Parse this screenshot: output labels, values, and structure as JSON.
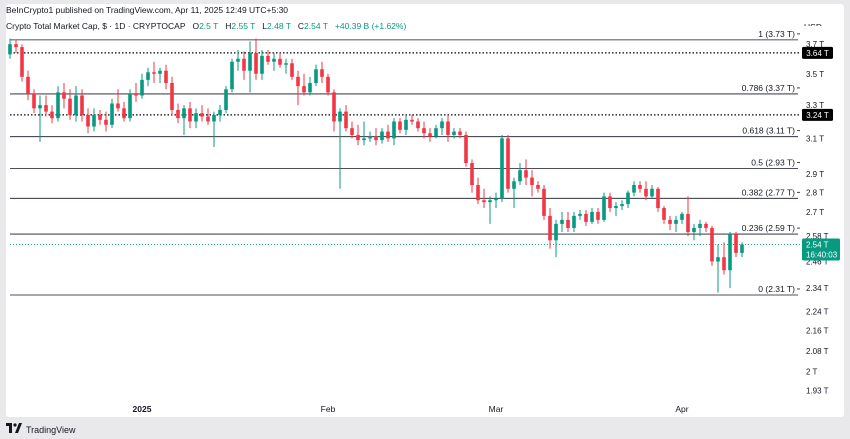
{
  "header": {
    "publish_line": "BeInCrypto1 published on TradingView.com, Apr 11, 2025 12:49 UTC+5:30",
    "symbol": "Crypto Total Market Cap, $ · 1D · CRYPTOCAP",
    "o_label": "O",
    "o_value": "2.5 T",
    "h_label": "H",
    "h_value": "2.55 T",
    "l_label": "L",
    "l_value": "2.48 T",
    "c_label": "C",
    "c_value": "2.54 T",
    "change": "+40.39 B (+1.62%)",
    "currency": "USD"
  },
  "footer": {
    "brand": "TradingView",
    "logo_icon": "tradingview-logo-icon"
  },
  "colors": {
    "up": "#089981",
    "down": "#f23645",
    "fib_line": "#131722",
    "price_badge": "#089981",
    "marker_badge": "#000000"
  },
  "chart_data": {
    "type": "candlestick",
    "y_scale": "log",
    "ylim": [
      1.9,
      3.8
    ],
    "y_ticks": [
      "3.7 T",
      "3.5 T",
      "3.3 T",
      "3.1 T",
      "2.9 T",
      "2.8 T",
      "2.7 T",
      "2.58 T",
      "2.46 T",
      "2.34 T",
      "2.24 T",
      "2.16 T",
      "2.08 T",
      "2 T",
      "1.93 T"
    ],
    "y_tick_values": [
      3.7,
      3.5,
      3.3,
      3.1,
      2.9,
      2.8,
      2.7,
      2.58,
      2.46,
      2.34,
      2.24,
      2.16,
      2.08,
      2.0,
      1.93
    ],
    "x_ticks": [
      {
        "label": "2025",
        "date": "2025-01-01"
      },
      {
        "label": "Feb",
        "date": "2025-02-01"
      },
      {
        "label": "Mar",
        "date": "2025-03-01"
      },
      {
        "label": "Apr",
        "date": "2025-04-01"
      }
    ],
    "fib_levels": [
      {
        "label": "1 (3.73 T)",
        "value": 3.73
      },
      {
        "label": "0.786 (3.37 T)",
        "value": 3.37
      },
      {
        "label": "0.618 (3.11 T)",
        "value": 3.11
      },
      {
        "label": "0.5 (2.93 T)",
        "value": 2.93
      },
      {
        "label": "0.382 (2.77 T)",
        "value": 2.77
      },
      {
        "label": "0.236 (2.59 T)",
        "value": 2.59
      },
      {
        "label": "0 (2.31 T)",
        "value": 2.31
      }
    ],
    "dotted_levels": [
      {
        "label": "3.64 T",
        "value": 3.64
      },
      {
        "label": "3.24 T",
        "value": 3.24
      }
    ],
    "current_price": {
      "label": "2.54 T",
      "countdown": "16:40:03",
      "value": 2.54
    },
    "candles": [
      {
        "d": "2024-12-10",
        "o": 3.63,
        "h": 3.74,
        "l": 3.6,
        "c": 3.7
      },
      {
        "d": "2024-12-11",
        "o": 3.7,
        "h": 3.73,
        "l": 3.64,
        "c": 3.68
      },
      {
        "d": "2024-12-12",
        "o": 3.68,
        "h": 3.7,
        "l": 3.45,
        "c": 3.48
      },
      {
        "d": "2024-12-13",
        "o": 3.48,
        "h": 3.52,
        "l": 3.33,
        "c": 3.37
      },
      {
        "d": "2024-12-14",
        "o": 3.37,
        "h": 3.4,
        "l": 3.25,
        "c": 3.28
      },
      {
        "d": "2024-12-15",
        "o": 3.28,
        "h": 3.36,
        "l": 3.08,
        "c": 3.3
      },
      {
        "d": "2024-12-16",
        "o": 3.3,
        "h": 3.36,
        "l": 3.23,
        "c": 3.26
      },
      {
        "d": "2024-12-17",
        "o": 3.26,
        "h": 3.3,
        "l": 3.19,
        "c": 3.22
      },
      {
        "d": "2024-12-18",
        "o": 3.22,
        "h": 3.42,
        "l": 3.2,
        "c": 3.38
      },
      {
        "d": "2024-12-19",
        "o": 3.38,
        "h": 3.44,
        "l": 3.28,
        "c": 3.34
      },
      {
        "d": "2024-12-20",
        "o": 3.34,
        "h": 3.4,
        "l": 3.21,
        "c": 3.24
      },
      {
        "d": "2024-12-21",
        "o": 3.24,
        "h": 3.42,
        "l": 3.2,
        "c": 3.36
      },
      {
        "d": "2024-12-22",
        "o": 3.36,
        "h": 3.4,
        "l": 3.2,
        "c": 3.24
      },
      {
        "d": "2024-12-23",
        "o": 3.24,
        "h": 3.28,
        "l": 3.13,
        "c": 3.17
      },
      {
        "d": "2024-12-24",
        "o": 3.17,
        "h": 3.28,
        "l": 3.14,
        "c": 3.24
      },
      {
        "d": "2024-12-25",
        "o": 3.24,
        "h": 3.27,
        "l": 3.18,
        "c": 3.21
      },
      {
        "d": "2024-12-26",
        "o": 3.21,
        "h": 3.26,
        "l": 3.14,
        "c": 3.18
      },
      {
        "d": "2024-12-27",
        "o": 3.18,
        "h": 3.34,
        "l": 3.16,
        "c": 3.31
      },
      {
        "d": "2024-12-28",
        "o": 3.31,
        "h": 3.4,
        "l": 3.26,
        "c": 3.28
      },
      {
        "d": "2024-12-29",
        "o": 3.28,
        "h": 3.32,
        "l": 3.2,
        "c": 3.22
      },
      {
        "d": "2024-12-30",
        "o": 3.22,
        "h": 3.4,
        "l": 3.2,
        "c": 3.37
      },
      {
        "d": "2024-12-31",
        "o": 3.37,
        "h": 3.44,
        "l": 3.32,
        "c": 3.36
      },
      {
        "d": "2025-01-01",
        "o": 3.36,
        "h": 3.5,
        "l": 3.34,
        "c": 3.46
      },
      {
        "d": "2025-01-02",
        "o": 3.46,
        "h": 3.54,
        "l": 3.42,
        "c": 3.51
      },
      {
        "d": "2025-01-03",
        "o": 3.51,
        "h": 3.58,
        "l": 3.44,
        "c": 3.5
      },
      {
        "d": "2025-01-04",
        "o": 3.5,
        "h": 3.54,
        "l": 3.44,
        "c": 3.52
      },
      {
        "d": "2025-01-05",
        "o": 3.52,
        "h": 3.56,
        "l": 3.4,
        "c": 3.44
      },
      {
        "d": "2025-01-06",
        "o": 3.44,
        "h": 3.48,
        "l": 3.24,
        "c": 3.27
      },
      {
        "d": "2025-01-07",
        "o": 3.27,
        "h": 3.31,
        "l": 3.19,
        "c": 3.22
      },
      {
        "d": "2025-01-08",
        "o": 3.22,
        "h": 3.3,
        "l": 3.12,
        "c": 3.28
      },
      {
        "d": "2025-01-09",
        "o": 3.28,
        "h": 3.32,
        "l": 3.16,
        "c": 3.2
      },
      {
        "d": "2025-01-10",
        "o": 3.2,
        "h": 3.28,
        "l": 3.16,
        "c": 3.25
      },
      {
        "d": "2025-01-11",
        "o": 3.25,
        "h": 3.3,
        "l": 3.2,
        "c": 3.23
      },
      {
        "d": "2025-01-12",
        "o": 3.23,
        "h": 3.28,
        "l": 3.18,
        "c": 3.2
      },
      {
        "d": "2025-01-13",
        "o": 3.2,
        "h": 3.26,
        "l": 3.05,
        "c": 3.24
      },
      {
        "d": "2025-01-14",
        "o": 3.24,
        "h": 3.3,
        "l": 3.2,
        "c": 3.27
      },
      {
        "d": "2025-01-15",
        "o": 3.27,
        "h": 3.42,
        "l": 3.25,
        "c": 3.4
      },
      {
        "d": "2025-01-16",
        "o": 3.4,
        "h": 3.6,
        "l": 3.38,
        "c": 3.58
      },
      {
        "d": "2025-01-17",
        "o": 3.58,
        "h": 3.66,
        "l": 3.52,
        "c": 3.6
      },
      {
        "d": "2025-01-18",
        "o": 3.6,
        "h": 3.65,
        "l": 3.46,
        "c": 3.52
      },
      {
        "d": "2025-01-19",
        "o": 3.52,
        "h": 3.72,
        "l": 3.38,
        "c": 3.64
      },
      {
        "d": "2025-01-20",
        "o": 3.64,
        "h": 3.74,
        "l": 3.46,
        "c": 3.5
      },
      {
        "d": "2025-01-21",
        "o": 3.5,
        "h": 3.66,
        "l": 3.46,
        "c": 3.62
      },
      {
        "d": "2025-01-22",
        "o": 3.62,
        "h": 3.66,
        "l": 3.56,
        "c": 3.58
      },
      {
        "d": "2025-01-23",
        "o": 3.58,
        "h": 3.64,
        "l": 3.52,
        "c": 3.6
      },
      {
        "d": "2025-01-24",
        "o": 3.6,
        "h": 3.64,
        "l": 3.54,
        "c": 3.56
      },
      {
        "d": "2025-01-25",
        "o": 3.56,
        "h": 3.6,
        "l": 3.5,
        "c": 3.57
      },
      {
        "d": "2025-01-26",
        "o": 3.57,
        "h": 3.6,
        "l": 3.46,
        "c": 3.48
      },
      {
        "d": "2025-01-27",
        "o": 3.48,
        "h": 3.52,
        "l": 3.3,
        "c": 3.42
      },
      {
        "d": "2025-01-28",
        "o": 3.42,
        "h": 3.5,
        "l": 3.36,
        "c": 3.38
      },
      {
        "d": "2025-01-29",
        "o": 3.38,
        "h": 3.48,
        "l": 3.36,
        "c": 3.44
      },
      {
        "d": "2025-01-30",
        "o": 3.44,
        "h": 3.56,
        "l": 3.42,
        "c": 3.53
      },
      {
        "d": "2025-01-31",
        "o": 3.53,
        "h": 3.58,
        "l": 3.44,
        "c": 3.48
      },
      {
        "d": "2025-02-01",
        "o": 3.48,
        "h": 3.5,
        "l": 3.36,
        "c": 3.38
      },
      {
        "d": "2025-02-02",
        "o": 3.38,
        "h": 3.4,
        "l": 3.14,
        "c": 3.2
      },
      {
        "d": "2025-02-03",
        "o": 3.2,
        "h": 3.28,
        "l": 2.82,
        "c": 3.26
      },
      {
        "d": "2025-02-04",
        "o": 3.26,
        "h": 3.3,
        "l": 3.14,
        "c": 3.16
      },
      {
        "d": "2025-02-05",
        "o": 3.16,
        "h": 3.2,
        "l": 3.1,
        "c": 3.12
      },
      {
        "d": "2025-02-06",
        "o": 3.12,
        "h": 3.18,
        "l": 3.06,
        "c": 3.09
      },
      {
        "d": "2025-02-07",
        "o": 3.09,
        "h": 3.2,
        "l": 3.06,
        "c": 3.1
      },
      {
        "d": "2025-02-08",
        "o": 3.1,
        "h": 3.14,
        "l": 3.08,
        "c": 3.11
      },
      {
        "d": "2025-02-09",
        "o": 3.11,
        "h": 3.16,
        "l": 3.06,
        "c": 3.09
      },
      {
        "d": "2025-02-10",
        "o": 3.09,
        "h": 3.16,
        "l": 3.07,
        "c": 3.14
      },
      {
        "d": "2025-02-11",
        "o": 3.14,
        "h": 3.18,
        "l": 3.08,
        "c": 3.1
      },
      {
        "d": "2025-02-12",
        "o": 3.1,
        "h": 3.22,
        "l": 3.06,
        "c": 3.2
      },
      {
        "d": "2025-02-13",
        "o": 3.2,
        "h": 3.22,
        "l": 3.13,
        "c": 3.15
      },
      {
        "d": "2025-02-14",
        "o": 3.15,
        "h": 3.24,
        "l": 3.12,
        "c": 3.21
      },
      {
        "d": "2025-02-15",
        "o": 3.21,
        "h": 3.24,
        "l": 3.18,
        "c": 3.2
      },
      {
        "d": "2025-02-16",
        "o": 3.2,
        "h": 3.22,
        "l": 3.14,
        "c": 3.16
      },
      {
        "d": "2025-02-17",
        "o": 3.16,
        "h": 3.2,
        "l": 3.1,
        "c": 3.13
      },
      {
        "d": "2025-02-18",
        "o": 3.13,
        "h": 3.16,
        "l": 3.08,
        "c": 3.11
      },
      {
        "d": "2025-02-19",
        "o": 3.11,
        "h": 3.18,
        "l": 3.1,
        "c": 3.16
      },
      {
        "d": "2025-02-20",
        "o": 3.16,
        "h": 3.22,
        "l": 3.12,
        "c": 3.2
      },
      {
        "d": "2025-02-21",
        "o": 3.2,
        "h": 3.24,
        "l": 3.08,
        "c": 3.12
      },
      {
        "d": "2025-02-22",
        "o": 3.12,
        "h": 3.16,
        "l": 3.1,
        "c": 3.14
      },
      {
        "d": "2025-02-23",
        "o": 3.14,
        "h": 3.16,
        "l": 3.1,
        "c": 3.12
      },
      {
        "d": "2025-02-24",
        "o": 3.12,
        "h": 3.14,
        "l": 2.94,
        "c": 2.96
      },
      {
        "d": "2025-02-25",
        "o": 2.96,
        "h": 2.98,
        "l": 2.8,
        "c": 2.84
      },
      {
        "d": "2025-02-26",
        "o": 2.84,
        "h": 2.88,
        "l": 2.74,
        "c": 2.76
      },
      {
        "d": "2025-02-27",
        "o": 2.76,
        "h": 2.82,
        "l": 2.72,
        "c": 2.75
      },
      {
        "d": "2025-02-28",
        "o": 2.75,
        "h": 2.78,
        "l": 2.64,
        "c": 2.76
      },
      {
        "d": "2025-03-01",
        "o": 2.76,
        "h": 2.8,
        "l": 2.72,
        "c": 2.77
      },
      {
        "d": "2025-03-02",
        "o": 2.77,
        "h": 3.12,
        "l": 2.75,
        "c": 3.1
      },
      {
        "d": "2025-03-03",
        "o": 3.1,
        "h": 3.12,
        "l": 2.8,
        "c": 2.82
      },
      {
        "d": "2025-03-04",
        "o": 2.82,
        "h": 2.88,
        "l": 2.72,
        "c": 2.86
      },
      {
        "d": "2025-03-05",
        "o": 2.86,
        "h": 2.96,
        "l": 2.84,
        "c": 2.92
      },
      {
        "d": "2025-03-06",
        "o": 2.92,
        "h": 2.98,
        "l": 2.84,
        "c": 2.88
      },
      {
        "d": "2025-03-07",
        "o": 2.88,
        "h": 2.92,
        "l": 2.78,
        "c": 2.84
      },
      {
        "d": "2025-03-08",
        "o": 2.84,
        "h": 2.86,
        "l": 2.8,
        "c": 2.82
      },
      {
        "d": "2025-03-09",
        "o": 2.82,
        "h": 2.84,
        "l": 2.66,
        "c": 2.68
      },
      {
        "d": "2025-03-10",
        "o": 2.68,
        "h": 2.72,
        "l": 2.52,
        "c": 2.56
      },
      {
        "d": "2025-03-11",
        "o": 2.56,
        "h": 2.66,
        "l": 2.48,
        "c": 2.64
      },
      {
        "d": "2025-03-12",
        "o": 2.64,
        "h": 2.7,
        "l": 2.6,
        "c": 2.66
      },
      {
        "d": "2025-03-13",
        "o": 2.66,
        "h": 2.7,
        "l": 2.6,
        "c": 2.62
      },
      {
        "d": "2025-03-14",
        "o": 2.62,
        "h": 2.7,
        "l": 2.6,
        "c": 2.68
      },
      {
        "d": "2025-03-15",
        "o": 2.68,
        "h": 2.71,
        "l": 2.66,
        "c": 2.69
      },
      {
        "d": "2025-03-16",
        "o": 2.69,
        "h": 2.71,
        "l": 2.63,
        "c": 2.65
      },
      {
        "d": "2025-03-17",
        "o": 2.65,
        "h": 2.72,
        "l": 2.64,
        "c": 2.7
      },
      {
        "d": "2025-03-18",
        "o": 2.7,
        "h": 2.72,
        "l": 2.64,
        "c": 2.66
      },
      {
        "d": "2025-03-19",
        "o": 2.66,
        "h": 2.8,
        "l": 2.65,
        "c": 2.78
      },
      {
        "d": "2025-03-20",
        "o": 2.78,
        "h": 2.8,
        "l": 2.7,
        "c": 2.72
      },
      {
        "d": "2025-03-21",
        "o": 2.72,
        "h": 2.75,
        "l": 2.68,
        "c": 2.73
      },
      {
        "d": "2025-03-22",
        "o": 2.73,
        "h": 2.76,
        "l": 2.71,
        "c": 2.74
      },
      {
        "d": "2025-03-23",
        "o": 2.74,
        "h": 2.81,
        "l": 2.72,
        "c": 2.8
      },
      {
        "d": "2025-03-24",
        "o": 2.8,
        "h": 2.86,
        "l": 2.78,
        "c": 2.84
      },
      {
        "d": "2025-03-25",
        "o": 2.84,
        "h": 2.86,
        "l": 2.8,
        "c": 2.82
      },
      {
        "d": "2025-03-26",
        "o": 2.82,
        "h": 2.86,
        "l": 2.76,
        "c": 2.78
      },
      {
        "d": "2025-03-27",
        "o": 2.78,
        "h": 2.84,
        "l": 2.77,
        "c": 2.82
      },
      {
        "d": "2025-03-28",
        "o": 2.82,
        "h": 2.83,
        "l": 2.7,
        "c": 2.72
      },
      {
        "d": "2025-03-29",
        "o": 2.72,
        "h": 2.73,
        "l": 2.64,
        "c": 2.66
      },
      {
        "d": "2025-03-30",
        "o": 2.66,
        "h": 2.68,
        "l": 2.61,
        "c": 2.64
      },
      {
        "d": "2025-03-31",
        "o": 2.64,
        "h": 2.68,
        "l": 2.6,
        "c": 2.66
      },
      {
        "d": "2025-04-01",
        "o": 2.66,
        "h": 2.7,
        "l": 2.64,
        "c": 2.69
      },
      {
        "d": "2025-04-02",
        "o": 2.69,
        "h": 2.78,
        "l": 2.58,
        "c": 2.6
      },
      {
        "d": "2025-04-03",
        "o": 2.6,
        "h": 2.64,
        "l": 2.56,
        "c": 2.62
      },
      {
        "d": "2025-04-04",
        "o": 2.62,
        "h": 2.66,
        "l": 2.58,
        "c": 2.64
      },
      {
        "d": "2025-04-05",
        "o": 2.64,
        "h": 2.65,
        "l": 2.6,
        "c": 2.62
      },
      {
        "d": "2025-04-06",
        "o": 2.62,
        "h": 2.63,
        "l": 2.44,
        "c": 2.46
      },
      {
        "d": "2025-04-07",
        "o": 2.46,
        "h": 2.54,
        "l": 2.32,
        "c": 2.48
      },
      {
        "d": "2025-04-08",
        "o": 2.48,
        "h": 2.55,
        "l": 2.4,
        "c": 2.42
      },
      {
        "d": "2025-04-09",
        "o": 2.42,
        "h": 2.6,
        "l": 2.34,
        "c": 2.59
      },
      {
        "d": "2025-04-10",
        "o": 2.59,
        "h": 2.6,
        "l": 2.48,
        "c": 2.5
      },
      {
        "d": "2025-04-11",
        "o": 2.5,
        "h": 2.55,
        "l": 2.48,
        "c": 2.54
      }
    ]
  }
}
